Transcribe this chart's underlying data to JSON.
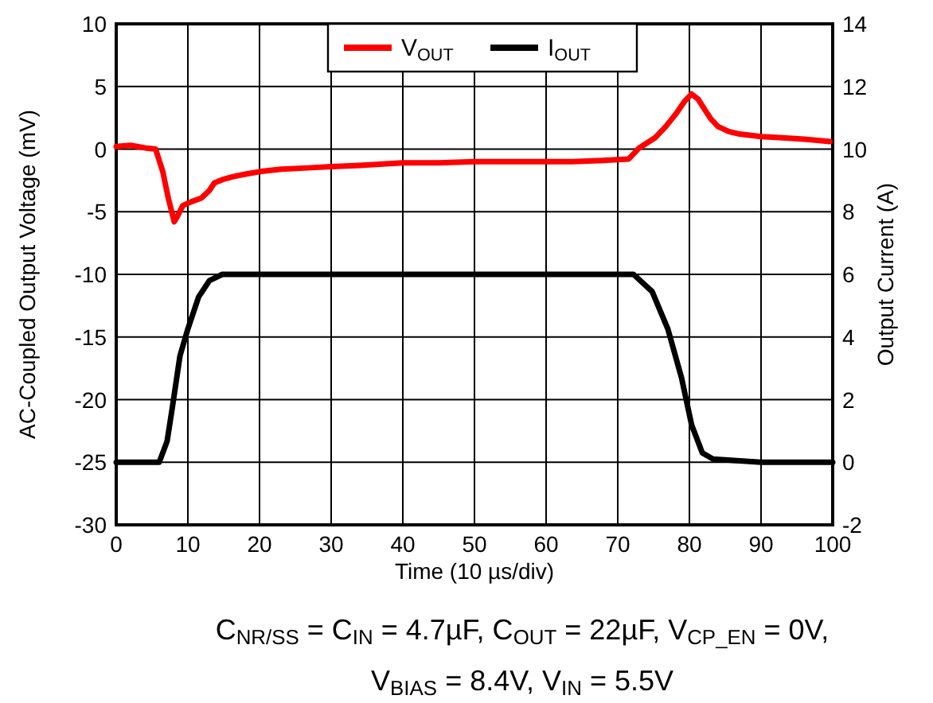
{
  "chart_data": {
    "type": "line",
    "xlabel": "Time (10 µs/div)",
    "ylabel": "AC-Coupled Output Voltage (mV)",
    "y2label": "Output Current (A)",
    "xlim": [
      0,
      100
    ],
    "xticks": [
      0,
      10,
      20,
      30,
      40,
      50,
      60,
      70,
      80,
      90,
      100
    ],
    "ylim": [
      -30,
      10
    ],
    "yticks": [
      -30,
      -25,
      -20,
      -15,
      -10,
      -5,
      0,
      5,
      10
    ],
    "y2lim": [
      -2,
      14
    ],
    "y2ticks": [
      -2,
      0,
      2,
      4,
      6,
      8,
      10,
      12,
      14
    ],
    "grid": true,
    "legend": "top",
    "line_style": "solid",
    "marker": "none",
    "series": [
      {
        "name": "V$_{OUT}$",
        "color": "#ff0000",
        "x": [
          0,
          2,
          4,
          5.5,
          6.5,
          7.3,
          8.1,
          8.6,
          9.3,
          10.5,
          11.9,
          13,
          13.7,
          15,
          16.3,
          18,
          20,
          23,
          26.7,
          30,
          34,
          40,
          45,
          50,
          55,
          60,
          63.7,
          68,
          71.5,
          73,
          75.2,
          76.7,
          78.1,
          79.3,
          80.3,
          81.2,
          82.2,
          83,
          84,
          85.5,
          87,
          90,
          93,
          96,
          99.6
        ],
        "values": [
          0.2,
          0.3,
          0.1,
          0,
          -1.8,
          -4,
          -5.8,
          -5.3,
          -4.5,
          -4.2,
          -3.9,
          -3.3,
          -2.7,
          -2.4,
          -2.2,
          -2,
          -1.8,
          -1.6,
          -1.5,
          -1.4,
          -1.3,
          -1.1,
          -1.1,
          -1.0,
          -1.0,
          -1.0,
          -1.0,
          -0.9,
          -0.8,
          0.1,
          0.9,
          1.8,
          2.8,
          3.8,
          4.4,
          4.0,
          3.1,
          2.4,
          1.8,
          1.4,
          1.2,
          1.0,
          0.9,
          0.8,
          0.6
        ]
      },
      {
        "name": "I$_{OUT}$",
        "color": "#000000",
        "axis": "y2",
        "x": [
          0,
          3,
          6,
          7.1,
          7.8,
          8.9,
          10,
          11.5,
          13,
          14.8,
          20,
          30,
          40,
          50,
          60,
          70,
          72.2,
          74.8,
          77,
          78.9,
          80.3,
          81.8,
          83.3,
          90,
          100
        ],
        "values": [
          0,
          0,
          0,
          0.67,
          1.7,
          3.4,
          4.26,
          5.28,
          5.8,
          6,
          6,
          6,
          6,
          6,
          6,
          6,
          6,
          5.45,
          4.25,
          2.7,
          1.2,
          0.3,
          0.1,
          0,
          0
        ]
      }
    ],
    "annotations": [
      "C$_{NR/SS}$ = C$_{IN}$ = 4.7µF, C$_{OUT}$ = 22µF, V$_{CP_EN}$ = 0V,",
      "V$_{BIAS}$ = 8.4V, V$_{IN}$ = 5.5V"
    ]
  }
}
